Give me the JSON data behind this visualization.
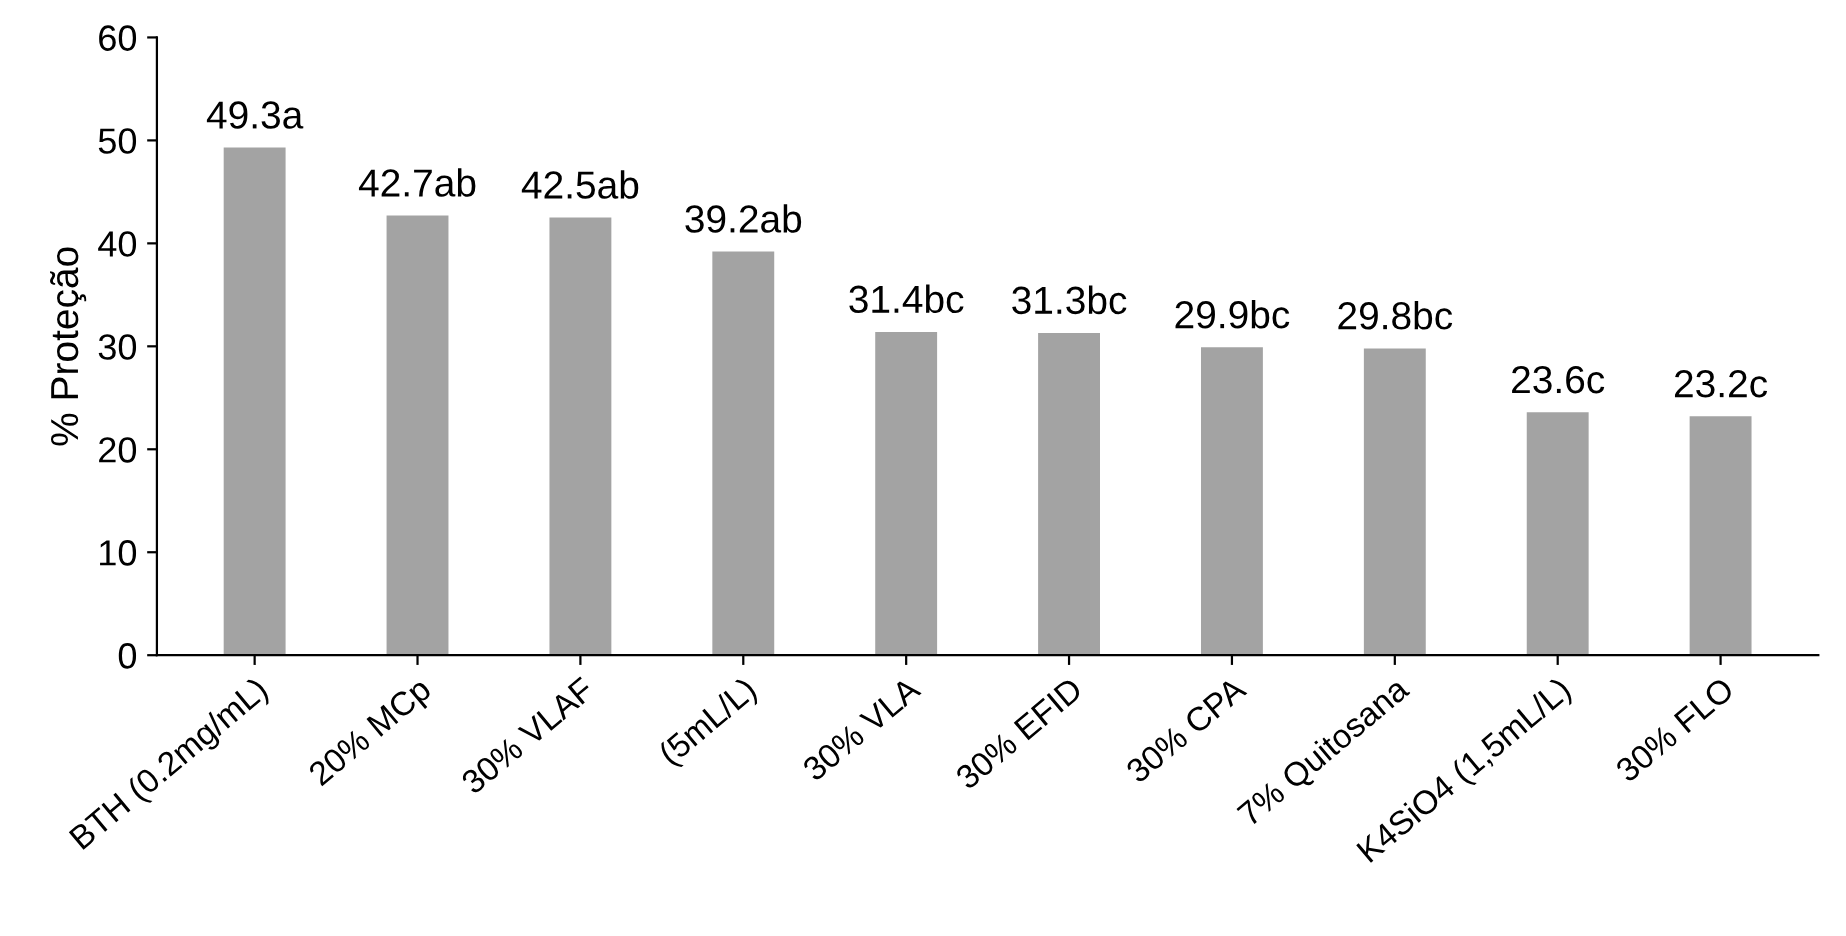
{
  "chart_data": {
    "type": "bar",
    "ylabel": "% Proteção",
    "categories": [
      "BTH (0.2mg/mL)",
      "20% MCp",
      "30% VLAF",
      "(5mL/L)",
      "30% VLA",
      "30% EFID",
      "30% CPA",
      "7% Quitosana",
      "K4SiO4 (1,5mL/L)",
      "30% FLO"
    ],
    "values": [
      49.3,
      42.7,
      42.5,
      39.2,
      31.4,
      31.3,
      29.9,
      29.8,
      23.6,
      23.2
    ],
    "value_labels": [
      "49.3a",
      "42.7ab",
      "42.5ab",
      "39.2ab",
      "31.4bc",
      "31.3bc",
      "29.9bc",
      "29.8bc",
      "23.6c",
      "23.2c"
    ],
    "color": "#a3a3a3",
    "ylim": [
      0,
      60
    ],
    "yticks": [
      0,
      10,
      20,
      30,
      40,
      50,
      60
    ],
    "grid": false,
    "legend": false
  }
}
